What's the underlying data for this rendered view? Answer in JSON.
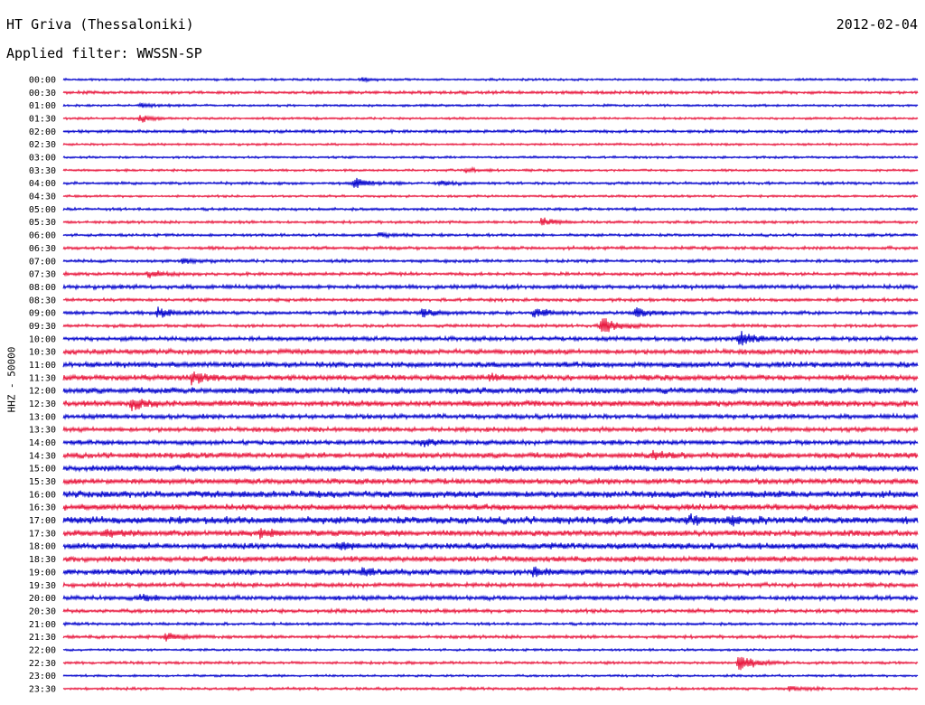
{
  "header": {
    "station": "HT Griva (Thessaloniki)",
    "date": "2012-02-04",
    "filter": "Applied filter: WWSSN-SP"
  },
  "colors": {
    "odd_trace": "#0000cc",
    "even_trace": "#e8153c",
    "text": "#000000"
  },
  "chart_data": {
    "type": "line",
    "title": "HT Griva (Thessaloniki)",
    "ylabel": "HHZ - 50000",
    "xlabel": "",
    "grid": false,
    "legend": "none",
    "row_labels": [
      "00:00",
      "00:30",
      "01:00",
      "01:30",
      "02:00",
      "02:30",
      "03:00",
      "03:30",
      "04:00",
      "04:30",
      "05:00",
      "05:30",
      "06:00",
      "06:30",
      "07:00",
      "07:30",
      "08:00",
      "08:30",
      "09:00",
      "09:30",
      "10:00",
      "10:30",
      "11:00",
      "11:30",
      "12:00",
      "12:30",
      "13:00",
      "13:30",
      "14:00",
      "14:30",
      "15:00",
      "15:30",
      "16:00",
      "16:30",
      "17:00",
      "17:30",
      "18:00",
      "18:30",
      "19:00",
      "19:30",
      "20:00",
      "20:30",
      "21:00",
      "21:30",
      "22:00",
      "22:30",
      "23:00",
      "23:30"
    ],
    "noise_level": [
      1,
      1.3,
      1,
      1,
      1.3,
      1,
      1,
      1,
      1.2,
      1,
      1.2,
      1.2,
      1.2,
      1.4,
      1.4,
      1.4,
      1.8,
      1.4,
      1.6,
      1.4,
      1.8,
      2.2,
      2.4,
      2.4,
      2.6,
      2.6,
      2,
      2,
      2,
      2.4,
      2.6,
      2.4,
      3,
      2.6,
      3.2,
      2.6,
      2.6,
      2.4,
      2.6,
      1.8,
      2,
      1.6,
      1.2,
      1.4,
      1,
      1.2,
      1,
      1.2
    ],
    "events": [
      {
        "row": 0,
        "t": 0.35,
        "amp": 2
      },
      {
        "row": 2,
        "t": 0.09,
        "amp": 3
      },
      {
        "row": 3,
        "t": 0.09,
        "amp": 5
      },
      {
        "row": 7,
        "t": 0.47,
        "amp": 3
      },
      {
        "row": 8,
        "t": 0.34,
        "amp": 7
      },
      {
        "row": 8,
        "t": 0.44,
        "amp": 3
      },
      {
        "row": 11,
        "t": 0.56,
        "amp": 5
      },
      {
        "row": 12,
        "t": 0.37,
        "amp": 3
      },
      {
        "row": 14,
        "t": 0.14,
        "amp": 3
      },
      {
        "row": 15,
        "t": 0.1,
        "amp": 4
      },
      {
        "row": 18,
        "t": 0.11,
        "amp": 7
      },
      {
        "row": 18,
        "t": 0.42,
        "amp": 5
      },
      {
        "row": 18,
        "t": 0.55,
        "amp": 6
      },
      {
        "row": 18,
        "t": 0.67,
        "amp": 7
      },
      {
        "row": 19,
        "t": 0.63,
        "amp": 14
      },
      {
        "row": 20,
        "t": 0.79,
        "amp": 12
      },
      {
        "row": 23,
        "t": 0.15,
        "amp": 9
      },
      {
        "row": 23,
        "t": 0.5,
        "amp": 4
      },
      {
        "row": 25,
        "t": 0.08,
        "amp": 6
      },
      {
        "row": 28,
        "t": 0.42,
        "amp": 4
      },
      {
        "row": 29,
        "t": 0.69,
        "amp": 5
      },
      {
        "row": 34,
        "t": 0.73,
        "amp": 6
      },
      {
        "row": 34,
        "t": 0.78,
        "amp": 6
      },
      {
        "row": 35,
        "t": 0.05,
        "amp": 5
      },
      {
        "row": 35,
        "t": 0.23,
        "amp": 5
      },
      {
        "row": 36,
        "t": 0.32,
        "amp": 4
      },
      {
        "row": 38,
        "t": 0.35,
        "amp": 4
      },
      {
        "row": 38,
        "t": 0.55,
        "amp": 5
      },
      {
        "row": 40,
        "t": 0.09,
        "amp": 4
      },
      {
        "row": 43,
        "t": 0.12,
        "amp": 6
      },
      {
        "row": 45,
        "t": 0.79,
        "amp": 12
      },
      {
        "row": 47,
        "t": 0.85,
        "amp": 3
      }
    ]
  }
}
